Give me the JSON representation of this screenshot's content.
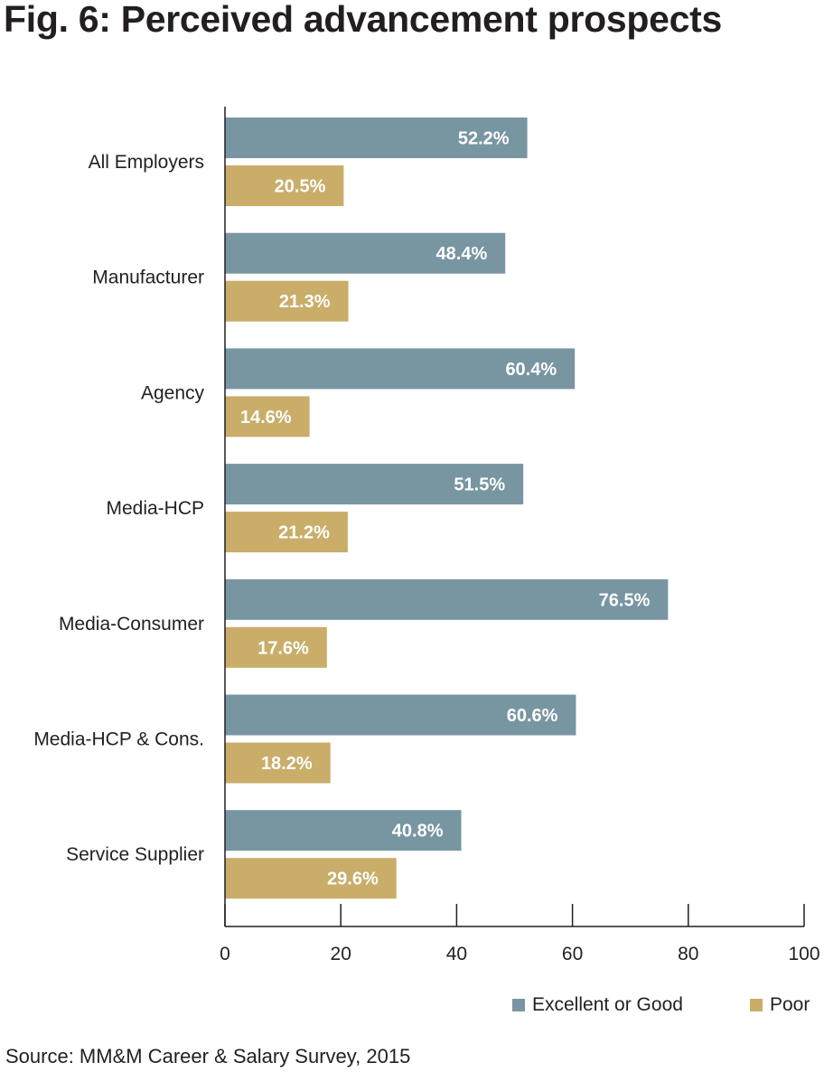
{
  "chart_data": {
    "type": "bar",
    "orientation": "horizontal",
    "title": "Fig. 6: Perceived advancement prospects",
    "categories": [
      "All Employers",
      "Manufacturer",
      "Agency",
      "Media-HCP",
      "Media-Consumer",
      "Media-HCP & Cons.",
      "Service Supplier"
    ],
    "series": [
      {
        "name": "Excellent or Good",
        "color": "#7896a2",
        "values": [
          52.2,
          48.4,
          60.4,
          51.5,
          76.5,
          60.6,
          40.8
        ],
        "labels": [
          "52.2%",
          "48.4%",
          "60.4%",
          "51.5%",
          "76.5%",
          "60.6%",
          "40.8%"
        ]
      },
      {
        "name": "Poor",
        "color": "#c9ad69",
        "values": [
          20.5,
          21.3,
          14.6,
          21.2,
          17.6,
          18.2,
          29.6
        ],
        "labels": [
          "20.5%",
          "21.3%",
          "14.6%",
          "21.2%",
          "17.6%",
          "18.2%",
          "29.6%"
        ]
      }
    ],
    "xlim": [
      0,
      100
    ],
    "xticks": [
      0,
      20,
      40,
      60,
      80,
      100
    ],
    "xtick_labels": [
      "0",
      "20",
      "40",
      "60",
      "80",
      "100"
    ],
    "grid": false,
    "legend_position": "bottom-right"
  },
  "source": "Source: MM&M Career & Salary Survey, 2015"
}
